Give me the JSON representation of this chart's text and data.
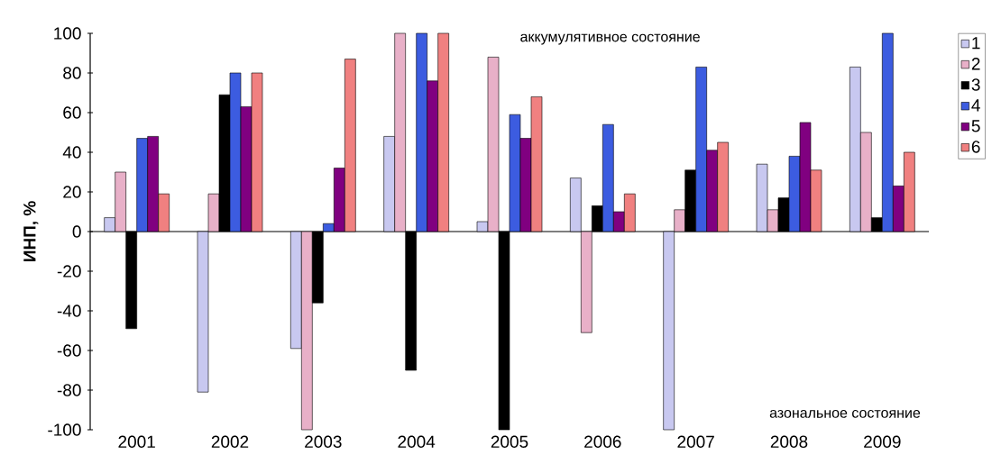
{
  "chart_data": {
    "type": "bar",
    "ylabel": "ИНП, %",
    "annotations": [
      "аккумулятивное состояние",
      "азональное состояние"
    ],
    "categories": [
      "2001",
      "2002",
      "2003",
      "2004",
      "2005",
      "2006",
      "2007",
      "2008",
      "2009"
    ],
    "series": [
      {
        "name": "1",
        "color": "#c8c8f0",
        "values": [
          7,
          -81,
          -59,
          48,
          5,
          27,
          -100,
          34,
          83
        ]
      },
      {
        "name": "2",
        "color": "#e8b0c8",
        "values": [
          30,
          19,
          -100,
          100,
          88,
          -51,
          11,
          11,
          50
        ]
      },
      {
        "name": "3",
        "color": "#000000",
        "values": [
          -49,
          69,
          -36,
          -70,
          -100,
          13,
          31,
          17,
          7
        ]
      },
      {
        "name": "4",
        "color": "#3c5ce0",
        "values": [
          47,
          80,
          4,
          100,
          59,
          54,
          83,
          38,
          100
        ]
      },
      {
        "name": "5",
        "color": "#800080",
        "values": [
          48,
          63,
          32,
          76,
          47,
          10,
          41,
          55,
          23
        ]
      },
      {
        "name": "6",
        "color": "#f08080",
        "values": [
          19,
          80,
          87,
          100,
          68,
          19,
          45,
          31,
          40
        ]
      }
    ],
    "ylim": [
      -100,
      100
    ],
    "yticks": [
      -100,
      -80,
      -60,
      -40,
      -20,
      0,
      20,
      40,
      60,
      80,
      100
    ],
    "legend": "top right"
  }
}
